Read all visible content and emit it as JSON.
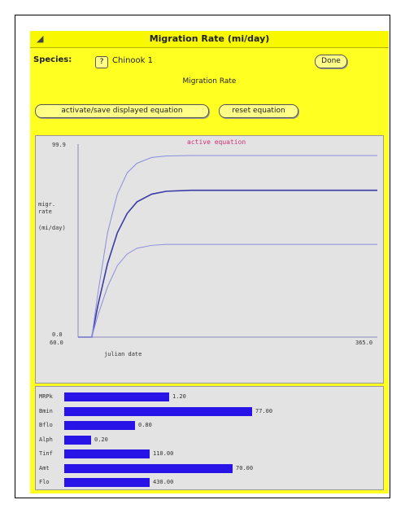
{
  "window": {
    "title": "Migration Rate (mi/day)"
  },
  "controls": {
    "species_label": "Species:",
    "species_menu_glyph": "?",
    "species_value": "Chinook 1",
    "done_label": "Done",
    "subtitle": "Migration Rate",
    "activate_label": "activate/save displayed equation",
    "reset_label": "reset equation"
  },
  "chart_data": {
    "type": "line",
    "annotation": "active equation",
    "ylabel_lines": [
      "migr.",
      "rate",
      "(mi/day)"
    ],
    "xlabel": "julian date",
    "y_tick_labels": [
      "99.9",
      "0.0"
    ],
    "x_tick_labels": [
      "60.0",
      "365.0"
    ],
    "xlim": [
      60,
      365
    ],
    "ylim": [
      0,
      99.9
    ],
    "grid": false,
    "colors": {
      "center": "#3a3aa8",
      "bounds": "#8c8ce0"
    },
    "series": [
      {
        "x": [
          60,
          74,
          80,
          90,
          100,
          110,
          120,
          135,
          150,
          175,
          200,
          250,
          300,
          365
        ],
        "y": [
          0,
          0,
          16,
          38,
          54,
          64,
          70,
          74,
          75.5,
          76,
          76,
          76,
          76,
          76
        ]
      },
      {
        "x": [
          60,
          74,
          80,
          90,
          100,
          110,
          120,
          135,
          150,
          175,
          200,
          250,
          300,
          365
        ],
        "y": [
          0,
          0,
          22,
          54,
          74,
          85,
          90,
          93,
          93.8,
          94,
          94,
          94,
          94,
          94
        ]
      },
      {
        "x": [
          60,
          74,
          80,
          90,
          100,
          110,
          120,
          135,
          150,
          175,
          200,
          250,
          300,
          365
        ],
        "y": [
          0,
          0,
          11,
          26,
          37,
          43,
          46,
          47.5,
          48,
          48,
          48,
          48,
          48,
          48
        ]
      }
    ]
  },
  "parameters": [
    {
      "name": "MRPk",
      "value": "1.20",
      "fraction": 0.43
    },
    {
      "name": "Bmin",
      "value": "77.00",
      "fraction": 0.77
    },
    {
      "name": "Bflo",
      "value": "0.80",
      "fraction": 0.29
    },
    {
      "name": "Alph",
      "value": "0.20",
      "fraction": 0.11
    },
    {
      "name": "Tinf",
      "value": "110.00",
      "fraction": 0.35
    },
    {
      "name": "Amt",
      "value": "70.00",
      "fraction": 0.69
    },
    {
      "name": "Flo",
      "value": "430.00",
      "fraction": 0.35
    }
  ]
}
